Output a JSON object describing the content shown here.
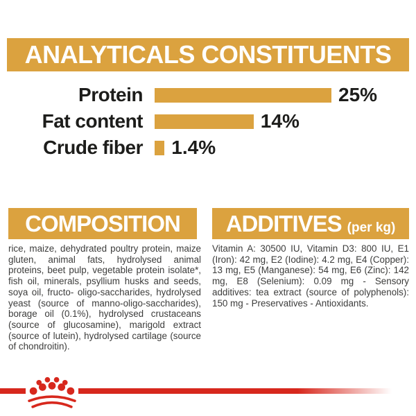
{
  "colors": {
    "banner_gold": "#DBA23F",
    "brand_red": "#D7281D",
    "chart_text": "#1d1d1b",
    "body_text": "#3c3c3b",
    "banner_text": "#ffffff"
  },
  "header": {
    "title": "ANALYTICALS CONSTITUENTS"
  },
  "chart_data": {
    "type": "bar",
    "orientation": "horizontal",
    "categories": [
      "Protein",
      "Fat content",
      "Crude fiber"
    ],
    "values": [
      25,
      14,
      1.4
    ],
    "value_labels": [
      "25%",
      "14%",
      "1.4%"
    ],
    "xlim": [
      0,
      25
    ],
    "bar_color": "#DBA23F",
    "grid": "off",
    "legend": "none",
    "title": "ANALYTICALS CONSTITUENTS"
  },
  "composition": {
    "title": "COMPOSITION",
    "body": "rice, maize, dehydrated poultry protein, maize gluten, animal fats, hydrolysed animal proteins, beet pulp, vegetable protein isolate*, fish oil, minerals, psyllium husks and seeds, soya oil, fructo- oligo-saccharides, hydrolysed yeast (source of manno-oligo-saccharides), borage oil (0.1%), hydrolysed crustaceans (source of glucosamine), marigold extract (source of lutein), hydrolysed cartilage (source of chondroitin)."
  },
  "additives": {
    "title": "ADDITIVES",
    "unit_label": "(per kg)",
    "body": "Vitamin A: 30500 IU, Vitamin D3: 800 IU, E1 (Iron): 42 mg, E2 (Iodine): 4.2 mg, E4 (Copper): 13 mg, E5 (Manganese): 54 mg, E6 (Zinc): 142 mg, E8 (Selenium): 0.09 mg - Sensory additives: tea extract (source of polyphenols): 150 mg - Preservatives - Antioxidants."
  },
  "footer": {
    "logo": "royal-canin-crown"
  }
}
